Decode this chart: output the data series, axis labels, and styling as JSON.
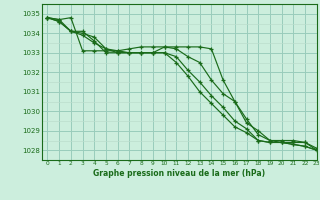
{
  "title": "Graphe pression niveau de la mer (hPa)",
  "bg_color": "#cceedd",
  "grid_minor_color": "#bbddcc",
  "grid_major_color": "#99ccbb",
  "line_color": "#1a6b1a",
  "xlim": [
    -0.5,
    23
  ],
  "ylim": [
    1027.5,
    1035.5
  ],
  "yticks": [
    1028,
    1029,
    1030,
    1031,
    1032,
    1033,
    1034,
    1035
  ],
  "xticks": [
    0,
    1,
    2,
    3,
    4,
    5,
    6,
    7,
    8,
    9,
    10,
    11,
    12,
    13,
    14,
    15,
    16,
    17,
    18,
    19,
    20,
    21,
    22,
    23
  ],
  "series": [
    [
      1034.8,
      1034.7,
      1034.1,
      1034.1,
      1033.6,
      1033.0,
      1033.0,
      1033.0,
      1033.0,
      1033.0,
      1033.3,
      1033.2,
      1032.8,
      1032.5,
      1031.6,
      1030.9,
      1030.5,
      1029.4,
      1029.0,
      1028.5,
      1028.4,
      1028.4,
      1028.4,
      1028.0
    ],
    [
      1034.8,
      1034.6,
      1034.1,
      1034.0,
      1033.8,
      1033.2,
      1033.0,
      1033.0,
      1033.0,
      1033.0,
      1033.0,
      1032.8,
      1032.1,
      1031.5,
      1030.8,
      1030.2,
      1029.5,
      1029.1,
      1028.5,
      1028.4,
      1028.4,
      1028.3,
      1028.2,
      1028.0
    ],
    [
      1034.8,
      1034.6,
      1034.1,
      1033.9,
      1033.5,
      1033.2,
      1033.1,
      1033.0,
      1033.0,
      1033.0,
      1033.0,
      1032.5,
      1031.8,
      1031.0,
      1030.4,
      1029.8,
      1029.2,
      1028.9,
      1028.5,
      1028.4,
      1028.4,
      1028.3,
      1028.2,
      1028.0
    ],
    [
      1034.8,
      1034.7,
      1034.8,
      1033.1,
      1033.1,
      1033.1,
      1033.1,
      1033.2,
      1033.3,
      1033.3,
      1033.3,
      1033.3,
      1033.3,
      1033.3,
      1033.2,
      1031.6,
      1030.5,
      1029.6,
      1028.8,
      1028.5,
      1028.5,
      1028.5,
      1028.4,
      1028.1
    ]
  ]
}
